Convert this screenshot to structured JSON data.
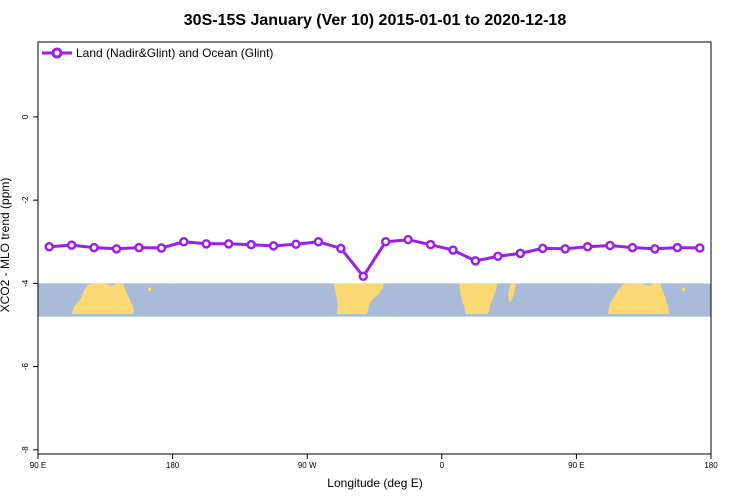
{
  "chart_data": {
    "type": "line",
    "title": "30S-15S January (Ver 10)   2015-01-01 to 2020-12-18",
    "xlabel": "Longitude (deg E)",
    "ylabel": "XCO2 - MLO trend (ppm)",
    "x_ticks": [
      {
        "value": 90,
        "label": "90 E"
      },
      {
        "value": 180,
        "label": "180"
      },
      {
        "value": 270,
        "label": "90 W"
      },
      {
        "value": 360,
        "label": "0"
      },
      {
        "value": 450,
        "label": "90 E"
      },
      {
        "value": 540,
        "label": "180"
      }
    ],
    "y_ticks": [
      {
        "value": 0,
        "label": "0"
      },
      {
        "value": -2,
        "label": "-2"
      },
      {
        "value": -4,
        "label": "-4"
      },
      {
        "value": -6,
        "label": "-6"
      },
      {
        "value": -8,
        "label": "-8"
      }
    ],
    "xlim": [
      90,
      540
    ],
    "ylim": [
      -8.1,
      1.8
    ],
    "grid": false,
    "legend_position": "top-left",
    "series": [
      {
        "name": "Land (Nadir&Glint) and Ocean (Glint)",
        "color": "#9b1fe8",
        "x": [
          97.5,
          112.5,
          127.5,
          142.5,
          157.5,
          172.5,
          187.5,
          202.5,
          217.5,
          232.5,
          247.5,
          262.5,
          277.5,
          292.5,
          307.5,
          322.5,
          337.5,
          352.5,
          367.5,
          382.5,
          397.5,
          412.5,
          427.5,
          442.5,
          457.5,
          472.5,
          487.5,
          502.5,
          517.5,
          532.5
        ],
        "values": [
          -3.12,
          -3.08,
          -3.14,
          -3.17,
          -3.14,
          -3.15,
          -3.0,
          -3.05,
          -3.05,
          -3.07,
          -3.1,
          -3.06,
          -3.0,
          -3.16,
          -3.83,
          -3.0,
          -2.95,
          -3.07,
          -3.2,
          -3.46,
          -3.35,
          -3.28,
          -3.16,
          -3.17,
          -3.12,
          -3.09,
          -3.14,
          -3.17,
          -3.14,
          -3.15
        ]
      }
    ],
    "background_map": {
      "y_range": [
        -4.0,
        -4.8
      ],
      "ocean_color": "#a8bcd9",
      "land_color": "#fcd874"
    }
  }
}
